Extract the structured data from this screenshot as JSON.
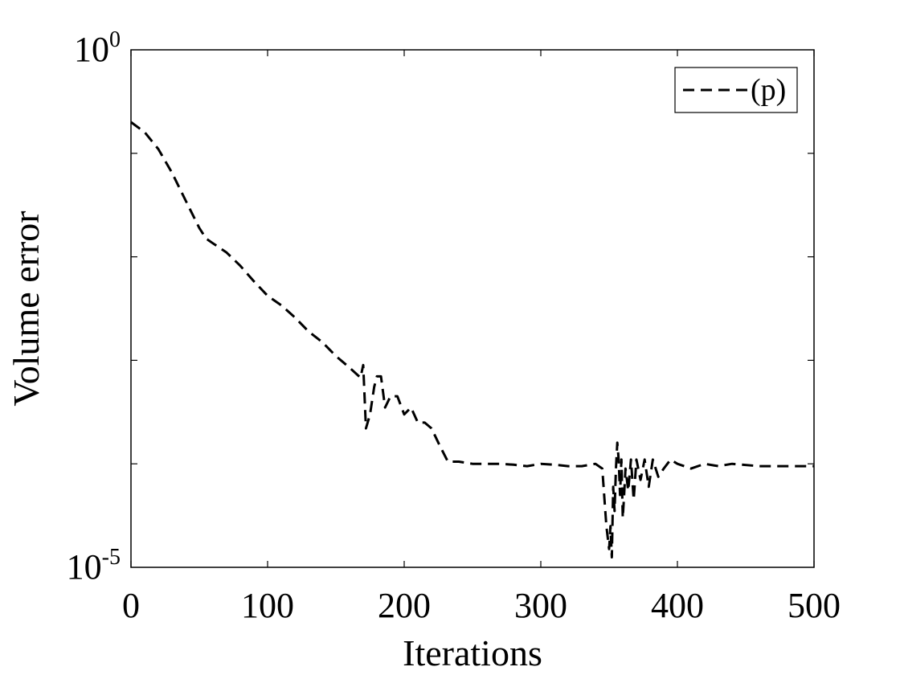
{
  "chart_data": {
    "type": "line",
    "title": "",
    "xlabel": "Iterations",
    "ylabel": "Volume error",
    "xlim": [
      0,
      500
    ],
    "ylim": [
      1e-05,
      1
    ],
    "yscale": "log",
    "x_ticks": [
      0,
      100,
      200,
      300,
      400,
      500
    ],
    "y_ticks": [
      {
        "base": "10",
        "exp": "0",
        "value": 1
      },
      {
        "base": "10",
        "exp": "-5",
        "value": 1e-05
      }
    ],
    "y_minor_ticks": [
      0.1,
      0.01,
      0.001,
      0.0001
    ],
    "grid": false,
    "legend": "top-right",
    "series": [
      {
        "name": "(p)",
        "color": "#000000",
        "dash": "dashed",
        "x": [
          0,
          10,
          20,
          30,
          40,
          50,
          55,
          60,
          70,
          80,
          90,
          100,
          110,
          120,
          130,
          140,
          150,
          160,
          168,
          170,
          172,
          175,
          178,
          180,
          183,
          186,
          190,
          195,
          200,
          205,
          210,
          215,
          220,
          226,
          232,
          240,
          250,
          260,
          270,
          280,
          290,
          300,
          310,
          320,
          330,
          340,
          345,
          348,
          350,
          351,
          352,
          353,
          354,
          355,
          356,
          357,
          358,
          359,
          360,
          361,
          362,
          364,
          366,
          368,
          370,
          373,
          376,
          379,
          382,
          386,
          390,
          395,
          400,
          410,
          420,
          430,
          440,
          460,
          480,
          500
        ],
        "y": [
          0.2,
          0.16,
          0.11,
          0.065,
          0.035,
          0.019,
          0.015,
          0.0135,
          0.011,
          0.0082,
          0.0058,
          0.0042,
          0.0034,
          0.0026,
          0.0019,
          0.0015,
          0.0011,
          0.00085,
          0.00068,
          0.0009,
          0.00022,
          0.0003,
          0.00055,
          0.0007,
          0.0007,
          0.00035,
          0.00045,
          0.00045,
          0.0003,
          0.00035,
          0.00025,
          0.00025,
          0.00022,
          0.00015,
          0.000105,
          0.000105,
          0.0001,
          0.0001,
          0.0001,
          9.8e-05,
          9.5e-05,
          0.0001,
          9.8e-05,
          9.5e-05,
          9.5e-05,
          0.0001,
          9e-05,
          2.5e-05,
          1.5e-05,
          2.5e-05,
          1.25e-05,
          6e-05,
          3.5e-05,
          9e-05,
          0.00016,
          0.00011,
          5e-05,
          0.00011,
          3e-05,
          5e-05,
          9e-05,
          5.5e-05,
          0.00011,
          4.5e-05,
          0.00011,
          7e-05,
          0.00011,
          6e-05,
          0.00011,
          7.5e-05,
          9e-05,
          0.00011,
          0.0001,
          9e-05,
          0.0001,
          9.5e-05,
          0.0001,
          9.5e-05,
          9.5e-05,
          9.5e-05
        ]
      }
    ]
  }
}
